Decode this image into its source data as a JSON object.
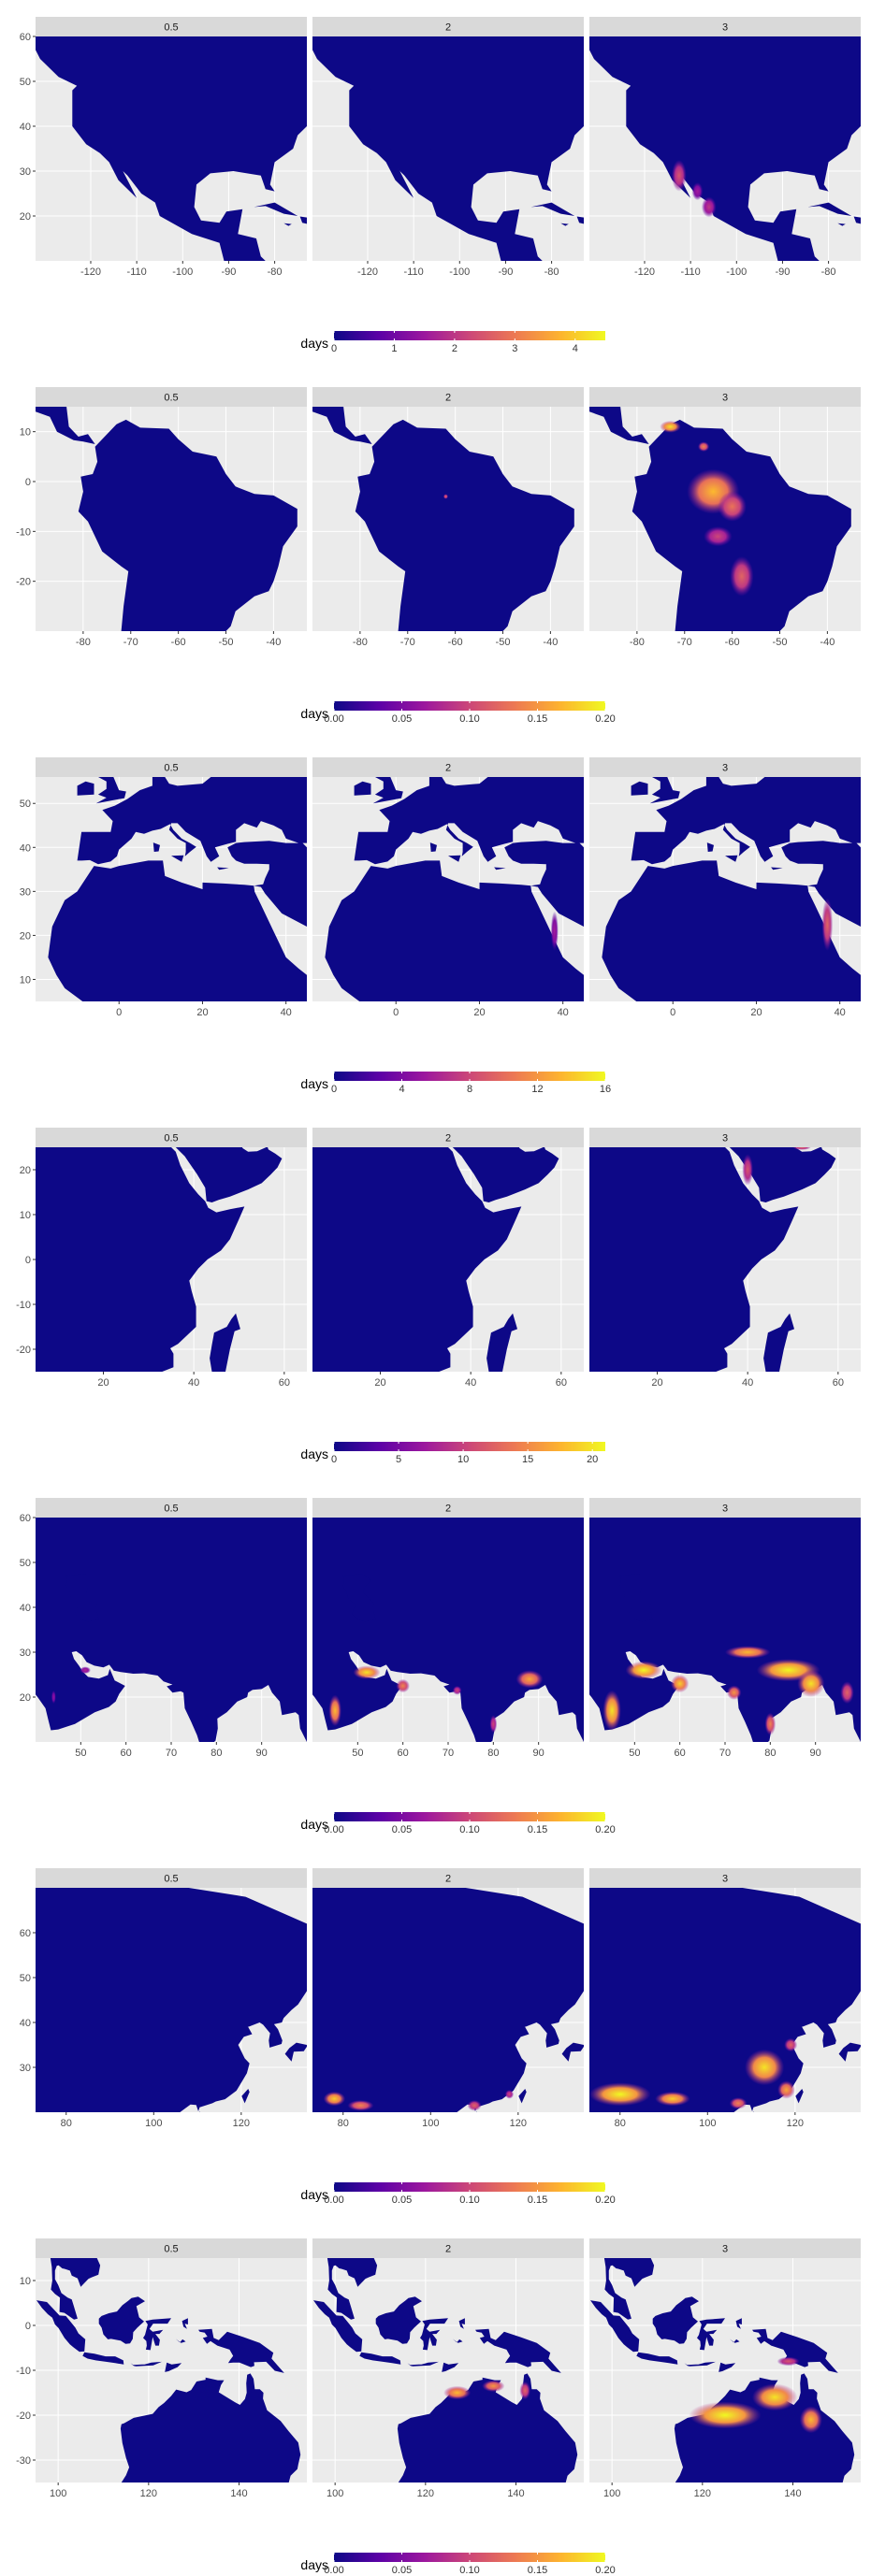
{
  "chart_data": [
    {
      "type": "heatmap",
      "region": "north-america",
      "facets": [
        "0.5",
        "2",
        "3"
      ],
      "x_ticks": [
        -120,
        -110,
        -100,
        -90,
        -80
      ],
      "xlim": [
        -132,
        -73
      ],
      "y_ticks": [
        20,
        30,
        40,
        50,
        60
      ],
      "ylim": [
        10,
        60
      ],
      "legend": {
        "title": "days",
        "ticks": [
          "0",
          "1",
          "2",
          "3",
          "4"
        ],
        "range": [
          0,
          4.5
        ]
      }
    },
    {
      "type": "heatmap",
      "region": "south-america",
      "facets": [
        "0.5",
        "2",
        "3"
      ],
      "x_ticks": [
        -80,
        -70,
        -60,
        -50,
        -40
      ],
      "xlim": [
        -90,
        -33
      ],
      "y_ticks": [
        -20,
        -10,
        0,
        10
      ],
      "ylim": [
        -30,
        15
      ],
      "legend": {
        "title": "days",
        "ticks": [
          "0.00",
          "0.05",
          "0.10",
          "0.15",
          "0.20"
        ],
        "range": [
          0,
          0.2
        ]
      }
    },
    {
      "type": "heatmap",
      "region": "europe-north-africa",
      "facets": [
        "0.5",
        "2",
        "3"
      ],
      "x_ticks": [
        0,
        20,
        40
      ],
      "xlim": [
        -20,
        45
      ],
      "y_ticks": [
        10,
        20,
        30,
        40,
        50
      ],
      "ylim": [
        5,
        56
      ],
      "legend": {
        "title": "days",
        "ticks": [
          "0",
          "4",
          "8",
          "12",
          "16"
        ],
        "range": [
          0,
          16
        ]
      }
    },
    {
      "type": "heatmap",
      "region": "east-africa",
      "facets": [
        "0.5",
        "2",
        "3"
      ],
      "x_ticks": [
        20,
        40,
        60
      ],
      "xlim": [
        5,
        65
      ],
      "y_ticks": [
        -20,
        -10,
        0,
        10,
        20
      ],
      "ylim": [
        -25,
        25
      ],
      "legend": {
        "title": "days",
        "ticks": [
          "0",
          "5",
          "10",
          "15",
          "20"
        ],
        "range": [
          0,
          21
        ]
      }
    },
    {
      "type": "heatmap",
      "region": "south-asia",
      "facets": [
        "0.5",
        "2",
        "3"
      ],
      "x_ticks": [
        50,
        60,
        70,
        80,
        90
      ],
      "xlim": [
        40,
        100
      ],
      "y_ticks": [
        20,
        30,
        40,
        50,
        60
      ],
      "ylim": [
        10,
        60
      ],
      "legend": {
        "title": "days",
        "ticks": [
          "0.00",
          "0.05",
          "0.10",
          "0.15",
          "0.20"
        ],
        "range": [
          0,
          0.2
        ]
      }
    },
    {
      "type": "heatmap",
      "region": "east-asia",
      "facets": [
        "0.5",
        "2",
        "3"
      ],
      "x_ticks": [
        80,
        100,
        120
      ],
      "xlim": [
        73,
        135
      ],
      "y_ticks": [
        30,
        40,
        50,
        60
      ],
      "ylim": [
        20,
        70
      ],
      "legend": {
        "title": "days",
        "ticks": [
          "0.00",
          "0.05",
          "0.10",
          "0.15",
          "0.20"
        ],
        "range": [
          0,
          0.2
        ]
      }
    },
    {
      "type": "heatmap",
      "region": "southeast-asia-australia",
      "facets": [
        "0.5",
        "2",
        "3"
      ],
      "x_ticks": [
        100,
        120,
        140
      ],
      "xlim": [
        95,
        155
      ],
      "y_ticks": [
        -30,
        -20,
        -10,
        0,
        10
      ],
      "ylim": [
        -35,
        15
      ],
      "legend": {
        "title": "days",
        "ticks": [
          "0.00",
          "0.05",
          "0.10",
          "0.15",
          "0.20"
        ],
        "range": [
          0,
          0.2
        ]
      }
    }
  ],
  "colors": {
    "ocean_panel": "#EBEBEB",
    "grid": "#FFFFFF",
    "strip": "#D9D9D9",
    "land_zero": "#0D0887",
    "colormap": [
      "#0D0887",
      "#5C01A6",
      "#9C179E",
      "#CC4778",
      "#ED7953",
      "#FDB32F",
      "#F0F921"
    ]
  }
}
